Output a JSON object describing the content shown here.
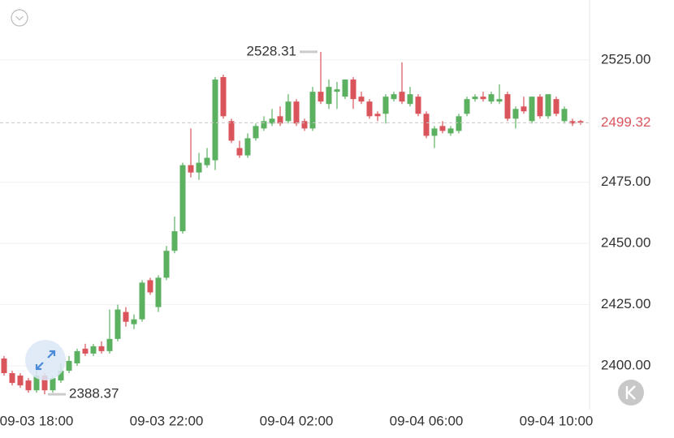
{
  "chart_data": {
    "type": "candlestick",
    "x": [
      null,
      null,
      null,
      null,
      "09-03 18:00",
      null,
      null,
      null,
      null,
      null,
      null,
      null,
      null,
      null,
      null,
      null,
      null,
      null,
      null,
      null,
      "09-03 22:00",
      null,
      null,
      null,
      null,
      null,
      null,
      null,
      null,
      null,
      null,
      null,
      null,
      null,
      null,
      null,
      "09-04 02:00",
      null,
      null,
      null,
      null,
      null,
      null,
      null,
      null,
      null,
      null,
      null,
      null,
      null,
      null,
      null,
      "09-04 06:00",
      null,
      null,
      null,
      null,
      null,
      null,
      null,
      null,
      null,
      null,
      null,
      null,
      null,
      null,
      null,
      "09-04 10:00",
      null,
      null,
      null
    ],
    "open": [
      2403,
      2397,
      2396,
      2394,
      2390,
      2396,
      2390,
      2394,
      2398,
      2401,
      2407,
      2405,
      2408,
      2406,
      2411,
      2422,
      2417,
      2419,
      2435,
      2424,
      2436,
      2447,
      2455,
      2482,
      2479,
      2482,
      2484,
      2518,
      2500,
      2489,
      2486,
      2493,
      2497,
      2499,
      2502,
      2500,
      2508,
      2500,
      2497,
      2512,
      2507,
      2512,
      2510,
      2517,
      2510,
      2508,
      2503,
      2503,
      2509,
      2512,
      2507,
      2510,
      2503,
      2494,
      2498,
      2495,
      2496,
      2503,
      2509,
      2510,
      2508,
      2508,
      2511,
      2501,
      2506,
      2500,
      2510,
      2502,
      2509,
      2500,
      2500,
      2500
    ],
    "high": [
      2404,
      2398,
      2397,
      2395,
      2398,
      2397,
      2396,
      2401,
      2404,
      2407,
      2409,
      2409,
      2410,
      2423,
      2425,
      2424,
      2421,
      2435,
      2436,
      2437,
      2449,
      2461,
      2483,
      2497,
      2487,
      2489,
      2518,
      2519,
      2501,
      2492,
      2495,
      2499,
      2502,
      2505,
      2506,
      2511,
      2509,
      2501,
      2514,
      2528.31,
      2517,
      2516,
      2517,
      2518,
      2512,
      2509,
      2504,
      2511,
      2512,
      2524,
      2514,
      2511,
      2504,
      2498,
      2500,
      2498,
      2503,
      2510,
      2511,
      2512,
      2512,
      2515,
      2512,
      2506,
      2510,
      2510,
      2511,
      2511,
      2510,
      2506,
      2501,
      2500.5
    ],
    "low": [
      2396,
      2392,
      2391,
      2389,
      2389,
      2388.37,
      2389,
      2393,
      2397,
      2400,
      2404,
      2404,
      2405,
      2405,
      2410,
      2416,
      2415,
      2418,
      2429,
      2422,
      2435,
      2446,
      2454,
      2477,
      2476,
      2481,
      2480,
      2501,
      2491,
      2485,
      2485,
      2492,
      2496,
      2498,
      2498,
      2499,
      2498,
      2496,
      2496,
      2507,
      2505,
      2505,
      2509,
      2505,
      2507,
      2501,
      2500,
      2499,
      2508,
      2507,
      2506,
      2502,
      2493,
      2489,
      2495,
      2494,
      2495,
      2502,
      2508,
      2508,
      2507,
      2507,
      2500,
      2497,
      2503,
      2499,
      2501,
      2501,
      2502,
      2499,
      2498,
      2498.5
    ],
    "close": [
      2397,
      2393,
      2392,
      2390,
      2396,
      2390,
      2395,
      2398,
      2402,
      2406,
      2405,
      2408,
      2406,
      2411,
      2423,
      2418,
      2419,
      2434,
      2430,
      2436,
      2447,
      2455,
      2482,
      2479,
      2483,
      2485,
      2517,
      2502,
      2492,
      2486,
      2493,
      2498,
      2500,
      2501,
      2499,
      2508,
      2499,
      2497,
      2512,
      2508,
      2514,
      2513,
      2517,
      2509,
      2508,
      2502,
      2502,
      2510,
      2511,
      2508,
      2511,
      2503,
      2494,
      2497,
      2496,
      2497,
      2502,
      2509,
      2510,
      2509,
      2511,
      2509,
      2501,
      2505,
      2504,
      2510,
      2502,
      2511,
      2503,
      2505,
      2499,
      2499.32
    ],
    "up_color": "#5cb161",
    "down_color": "#d9545b",
    "ylim": [
      2382.1,
      2549.5
    ],
    "yticks": [
      {
        "value": 2400,
        "label": "2400.00"
      },
      {
        "value": 2425,
        "label": "2425.00"
      },
      {
        "value": 2450,
        "label": "2450.00"
      },
      {
        "value": 2475,
        "label": "2475.00"
      },
      {
        "value": 2525,
        "label": "2525.00"
      }
    ],
    "grid": true
  }
}
